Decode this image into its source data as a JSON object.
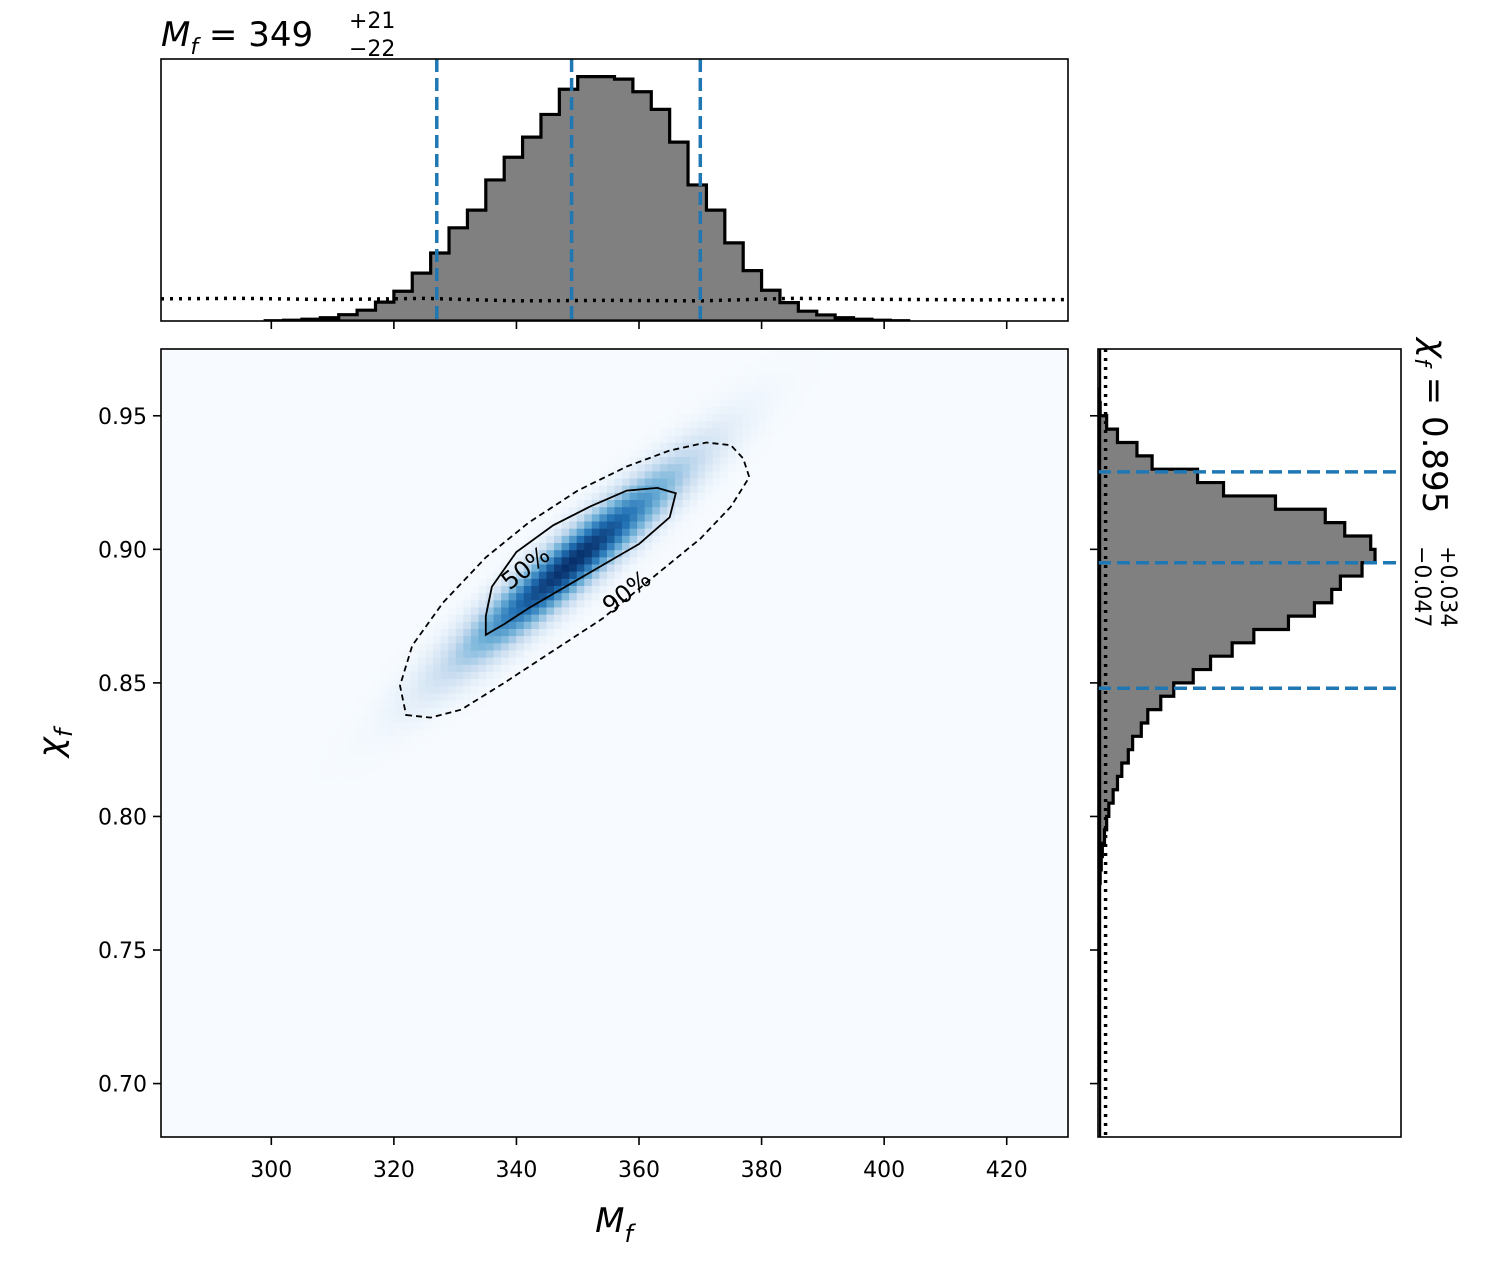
{
  "chart_data": [
    {
      "panel": "joint",
      "type": "heatmap",
      "xlabel_base": "M",
      "xlabel_sub": "f",
      "ylabel_base": "χ",
      "ylabel_sub": "f",
      "xlim": [
        282,
        430
      ],
      "ylim": [
        0.68,
        0.975
      ],
      "xticks": [
        300,
        320,
        340,
        360,
        380,
        400,
        420
      ],
      "xtick_labels": [
        "300",
        "320",
        "340",
        "360",
        "380",
        "400",
        "420"
      ],
      "yticks": [
        0.7,
        0.75,
        0.8,
        0.85,
        0.9,
        0.95
      ],
      "ytick_labels": [
        "0.70",
        "0.75",
        "0.80",
        "0.85",
        "0.90",
        "0.95"
      ],
      "colormap": "Blues",
      "density": {
        "mean_x": 349,
        "mean_y": 0.895,
        "sd_x": 14,
        "sd_y": 0.028,
        "correlation": 0.94
      },
      "contours": [
        {
          "level": "50%",
          "style": "solid",
          "points": [
            [
              335,
              0.868
            ],
            [
              338,
              0.872
            ],
            [
              342,
              0.878
            ],
            [
              348,
              0.886
            ],
            [
              354,
              0.894
            ],
            [
              360,
              0.902
            ],
            [
              365,
              0.912
            ],
            [
              366,
              0.921
            ],
            [
              363,
              0.923
            ],
            [
              358,
              0.922
            ],
            [
              352,
              0.916
            ],
            [
              346,
              0.909
            ],
            [
              340,
              0.899
            ],
            [
              336,
              0.886
            ],
            [
              335,
              0.875
            ],
            [
              335,
              0.868
            ]
          ],
          "label_x": 341.5,
          "label_y": 0.893,
          "label_angle": -38
        },
        {
          "level": "90%",
          "style": "dashed",
          "points": [
            [
              322,
              0.838
            ],
            [
              326,
              0.837
            ],
            [
              331,
              0.84
            ],
            [
              338,
              0.85
            ],
            [
              346,
              0.862
            ],
            [
              354,
              0.874
            ],
            [
              362,
              0.889
            ],
            [
              370,
              0.904
            ],
            [
              375,
              0.916
            ],
            [
              378,
              0.927
            ],
            [
              377,
              0.934
            ],
            [
              375,
              0.939
            ],
            [
              371,
              0.94
            ],
            [
              365,
              0.937
            ],
            [
              358,
              0.931
            ],
            [
              350,
              0.922
            ],
            [
              342,
              0.91
            ],
            [
              335,
              0.897
            ],
            [
              328,
              0.88
            ],
            [
              323,
              0.864
            ],
            [
              321,
              0.849
            ],
            [
              322,
              0.838
            ]
          ],
          "label_x": 358,
          "label_y": 0.884,
          "label_angle": -38
        }
      ]
    },
    {
      "panel": "top-marginal",
      "type": "bar",
      "title_base": "M",
      "title_sub": "f",
      "title_value": "349",
      "title_plus": "+21",
      "title_minus": "−22",
      "xlim": [
        282,
        430
      ],
      "bin_edges": [
        299,
        302,
        305,
        308,
        311,
        314,
        317,
        320,
        323,
        326,
        329,
        332,
        335,
        338,
        341,
        344,
        347,
        350,
        353,
        356,
        359,
        362,
        365,
        368,
        371,
        374,
        377,
        380,
        383,
        386,
        389,
        392,
        395,
        398,
        401,
        404
      ],
      "values": [
        0.001,
        0.003,
        0.007,
        0.013,
        0.025,
        0.043,
        0.075,
        0.118,
        0.19,
        0.27,
        0.37,
        0.44,
        0.56,
        0.65,
        0.73,
        0.82,
        0.92,
        0.97,
        0.97,
        0.96,
        0.91,
        0.84,
        0.71,
        0.54,
        0.44,
        0.31,
        0.2,
        0.122,
        0.073,
        0.039,
        0.024,
        0.013,
        0.007,
        0.003,
        0.001
      ],
      "ylim": [
        0,
        1.04
      ],
      "quantile_lines": [
        327,
        349,
        370
      ],
      "prior_x": [
        282,
        295,
        310,
        325,
        340,
        355,
        370,
        385,
        400,
        415,
        430
      ],
      "prior_values": [
        0.088,
        0.09,
        0.085,
        0.09,
        0.08,
        0.082,
        0.08,
        0.09,
        0.086,
        0.084,
        0.085
      ]
    },
    {
      "panel": "right-marginal",
      "type": "bar",
      "orientation": "horizontal",
      "title_base": "χ",
      "title_sub": "f",
      "title_value": "0.895",
      "title_plus": "+0.034",
      "title_minus": "−0.047",
      "ylim": [
        0.68,
        0.975
      ],
      "bin_edges": [
        0.7,
        0.705,
        0.71,
        0.715,
        0.72,
        0.725,
        0.73,
        0.735,
        0.74,
        0.745,
        0.75,
        0.755,
        0.76,
        0.765,
        0.77,
        0.775,
        0.78,
        0.785,
        0.79,
        0.795,
        0.8,
        0.805,
        0.81,
        0.815,
        0.82,
        0.825,
        0.83,
        0.835,
        0.84,
        0.845,
        0.85,
        0.855,
        0.86,
        0.865,
        0.87,
        0.875,
        0.88,
        0.885,
        0.89,
        0.895,
        0.9,
        0.905,
        0.91,
        0.915,
        0.92,
        0.925,
        0.93,
        0.935,
        0.94,
        0.945,
        0.95,
        0.955,
        0.96
      ],
      "values": [
        0.0,
        0.0,
        0.0,
        0.0,
        0.0,
        0.0,
        0.0,
        0.0,
        0.0,
        0.0,
        0.0,
        0.0,
        0.0,
        0.0,
        0.005,
        0.01,
        0.015,
        0.02,
        0.03,
        0.04,
        0.05,
        0.07,
        0.09,
        0.11,
        0.14,
        0.16,
        0.2,
        0.23,
        0.29,
        0.35,
        0.44,
        0.52,
        0.62,
        0.72,
        0.88,
        1.0,
        1.08,
        1.12,
        1.22,
        1.28,
        1.26,
        1.14,
        1.05,
        0.82,
        0.58,
        0.46,
        0.25,
        0.18,
        0.09,
        0.04,
        0.01,
        0.005
      ],
      "xlim": [
        0,
        1.4
      ],
      "quantile_lines": [
        0.848,
        0.895,
        0.929
      ],
      "prior_x": 0.035
    }
  ],
  "colors": {
    "histogram_fill": "#808080",
    "histogram_edge": "#000000",
    "quantile_line": "#1f77b4",
    "heatmap_low": "#f7fbff",
    "heatmap_high": "#08306b"
  }
}
